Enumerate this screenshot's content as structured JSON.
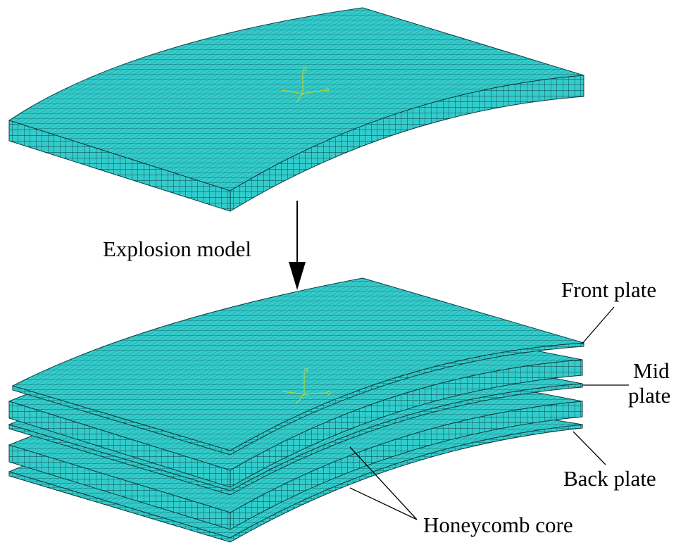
{
  "figure": {
    "arrow_label": "Explosion model",
    "labels": {
      "front_plate": "Front plate",
      "mid_plate_line1": "Mid",
      "mid_plate_line2": "plate",
      "back_plate": "Back plate",
      "honeycomb_core": "Honeycomb core"
    },
    "colors": {
      "mesh_fill": "#33CCCC",
      "mesh_line": "#0d3d40",
      "axis_triad": "#b8d23a",
      "text": "#000000"
    }
  }
}
